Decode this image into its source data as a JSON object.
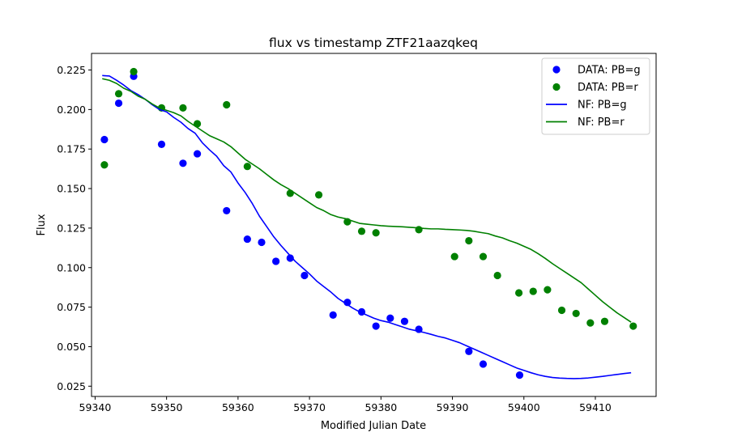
{
  "chart_data": {
    "type": "scatter",
    "title": "flux vs timestamp ZTF21aazqkeq",
    "xlabel": "Modified Julian Date",
    "ylabel": "Flux",
    "xlim": [
      59339.5,
      59418.5
    ],
    "ylim": [
      0.0185,
      0.2355
    ],
    "x_ticks": [
      59340,
      59350,
      59360,
      59370,
      59380,
      59390,
      59400,
      59410
    ],
    "y_ticks": [
      0.025,
      0.05,
      0.075,
      0.1,
      0.125,
      0.15,
      0.175,
      0.2,
      0.225
    ],
    "legend_position": "top-right",
    "series": [
      {
        "name": "DATA: PB=g",
        "kind": "scatter",
        "color": "#0000ff",
        "x": [
          59341.3,
          59343.3,
          59345.4,
          59349.3,
          59352.3,
          59354.3,
          59358.4,
          59361.3,
          59363.3,
          59365.3,
          59367.3,
          59369.3,
          59373.3,
          59375.3,
          59377.3,
          59379.3,
          59381.3,
          59383.3,
          59385.3,
          59392.3,
          59394.3,
          59399.4
        ],
        "y": [
          0.181,
          0.204,
          0.221,
          0.178,
          0.166,
          0.172,
          0.136,
          0.118,
          0.116,
          0.104,
          0.106,
          0.095,
          0.07,
          0.078,
          0.072,
          0.063,
          0.068,
          0.066,
          0.061,
          0.047,
          0.039,
          0.032
        ]
      },
      {
        "name": "DATA: PB=r",
        "kind": "scatter",
        "color": "#008000",
        "x": [
          59341.3,
          59343.3,
          59345.4,
          59349.3,
          59352.3,
          59354.3,
          59358.4,
          59361.3,
          59367.3,
          59371.3,
          59375.3,
          59377.3,
          59379.3,
          59385.3,
          59390.3,
          59392.3,
          59394.3,
          59396.3,
          59399.3,
          59401.3,
          59403.3,
          59405.3,
          59407.3,
          59409.3,
          59411.3,
          59415.3
        ],
        "y": [
          0.165,
          0.21,
          0.224,
          0.201,
          0.201,
          0.191,
          0.203,
          0.164,
          0.147,
          0.146,
          0.129,
          0.123,
          0.122,
          0.124,
          0.107,
          0.117,
          0.107,
          0.095,
          0.084,
          0.085,
          0.086,
          0.073,
          0.071,
          0.065,
          0.066,
          0.063
        ]
      },
      {
        "name": "NF: PB=g",
        "kind": "line",
        "color": "#0000ff",
        "x": [
          59341.0,
          59342.0,
          59343.0,
          59344.0,
          59345.0,
          59346.0,
          59347.0,
          59348.0,
          59349.0,
          59350.0,
          59351.0,
          59352.0,
          59353.0,
          59354.0,
          59355.0,
          59356.0,
          59357.0,
          59358.0,
          59359.0,
          59360.0,
          59361.0,
          59362.0,
          59363.0,
          59364.0,
          59365.0,
          59366.0,
          59367.0,
          59368.0,
          59369.0,
          59370.0,
          59371.0,
          59372.0,
          59373.0,
          59374.0,
          59375.0,
          59376.0,
          59377.0,
          59378.0,
          59379.0,
          59380.0,
          59381.0,
          59382.0,
          59383.0,
          59384.0,
          59385.0,
          59386.0,
          59387.0,
          59388.0,
          59389.0,
          59390.0,
          59391.0,
          59392.0,
          59393.0,
          59394.0,
          59395.0,
          59396.0,
          59397.0,
          59398.0,
          59399.0,
          59400.0,
          59401.0,
          59402.0,
          59403.0,
          59404.0,
          59405.0,
          59406.0,
          59407.0,
          59408.0,
          59409.0,
          59410.0,
          59411.0,
          59412.0,
          59413.0,
          59414.0,
          59415.0
        ],
        "y": [
          0.2215,
          0.2212,
          0.2185,
          0.2155,
          0.212,
          0.2095,
          0.2065,
          0.203,
          0.2,
          0.1985,
          0.195,
          0.192,
          0.188,
          0.185,
          0.179,
          0.1745,
          0.1705,
          0.1645,
          0.1605,
          0.1535,
          0.1475,
          0.1405,
          0.1325,
          0.126,
          0.1195,
          0.114,
          0.109,
          0.104,
          0.1,
          0.096,
          0.0915,
          0.088,
          0.0845,
          0.0805,
          0.0775,
          0.0745,
          0.072,
          0.07,
          0.068,
          0.0665,
          0.0655,
          0.064,
          0.0625,
          0.061,
          0.06,
          0.059,
          0.0578,
          0.0565,
          0.0555,
          0.054,
          0.0525,
          0.0505,
          0.0485,
          0.0465,
          0.0445,
          0.0425,
          0.0405,
          0.0385,
          0.0365,
          0.035,
          0.0335,
          0.0322,
          0.0312,
          0.0305,
          0.0301,
          0.0299,
          0.0298,
          0.0299,
          0.0302,
          0.0307,
          0.0312,
          0.0318,
          0.0324,
          0.033,
          0.0335
        ]
      },
      {
        "name": "NF: PB=r",
        "kind": "line",
        "color": "#008000",
        "x": [
          59341.0,
          59342.0,
          59343.0,
          59344.0,
          59345.0,
          59346.0,
          59347.0,
          59348.0,
          59349.0,
          59350.0,
          59351.0,
          59352.0,
          59353.0,
          59354.0,
          59355.0,
          59356.0,
          59357.0,
          59358.0,
          59359.0,
          59360.0,
          59361.0,
          59362.0,
          59363.0,
          59364.0,
          59365.0,
          59366.0,
          59367.0,
          59368.0,
          59369.0,
          59370.0,
          59371.0,
          59372.0,
          59373.0,
          59374.0,
          59375.0,
          59376.0,
          59377.0,
          59378.0,
          59379.0,
          59380.0,
          59381.0,
          59382.0,
          59383.0,
          59384.0,
          59385.0,
          59386.0,
          59387.0,
          59388.0,
          59389.0,
          59390.0,
          59391.0,
          59392.0,
          59393.0,
          59394.0,
          59395.0,
          59396.0,
          59397.0,
          59398.0,
          59399.0,
          59400.0,
          59401.0,
          59402.0,
          59403.0,
          59404.0,
          59405.0,
          59406.0,
          59407.0,
          59408.0,
          59409.0,
          59410.0,
          59411.0,
          59412.0,
          59413.0,
          59414.0,
          59415.0
        ],
        "y": [
          0.2195,
          0.2185,
          0.2165,
          0.2135,
          0.2115,
          0.2085,
          0.2065,
          0.2035,
          0.201,
          0.1995,
          0.198,
          0.196,
          0.1925,
          0.1895,
          0.1865,
          0.1835,
          0.1815,
          0.1795,
          0.1765,
          0.1725,
          0.1685,
          0.1655,
          0.1625,
          0.159,
          0.1555,
          0.1525,
          0.15,
          0.147,
          0.144,
          0.141,
          0.138,
          0.136,
          0.1335,
          0.132,
          0.131,
          0.1295,
          0.128,
          0.1275,
          0.127,
          0.1265,
          0.1262,
          0.126,
          0.1258,
          0.1255,
          0.1252,
          0.1248,
          0.1245,
          0.1245,
          0.1242,
          0.124,
          0.1238,
          0.1235,
          0.123,
          0.1222,
          0.1215,
          0.12,
          0.1188,
          0.117,
          0.1155,
          0.1135,
          0.1115,
          0.1088,
          0.1058,
          0.1025,
          0.0995,
          0.0965,
          0.0935,
          0.0905,
          0.0865,
          0.0825,
          0.0785,
          0.075,
          0.0715,
          0.0685,
          0.0655
        ]
      }
    ]
  }
}
